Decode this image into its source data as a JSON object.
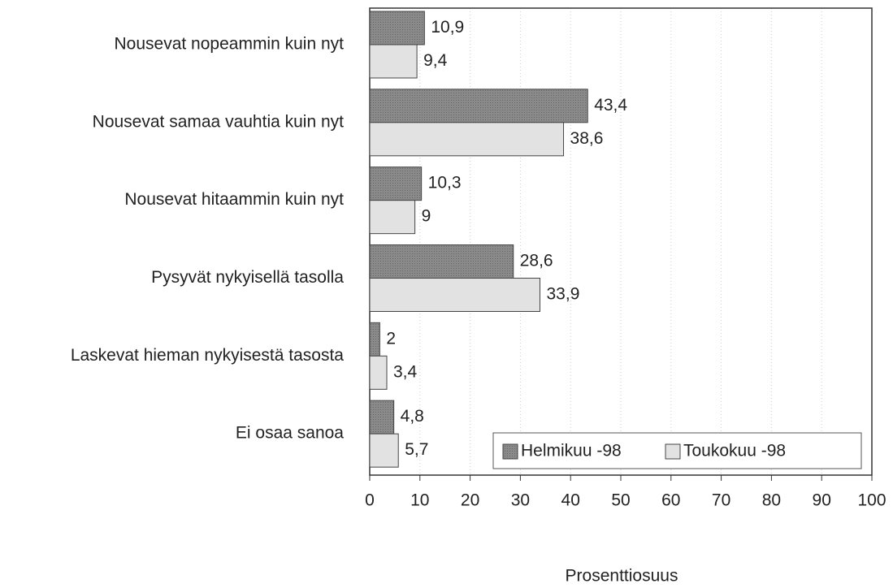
{
  "chart_data": {
    "type": "barh",
    "categories": [
      "Nousevat nopeammin kuin nyt",
      "Nousevat samaa vauhtia kuin nyt",
      "Nousevat hitaammin kuin nyt",
      "Pysyvät nykyisellä tasolla",
      "Laskevat hieman nykyisestä tasosta",
      "Ei osaa sanoa"
    ],
    "series": [
      {
        "name": "Helmikuu -98",
        "color": "#8a8a8a",
        "values": [
          10.9,
          43.4,
          10.3,
          28.6,
          2,
          4.8
        ],
        "value_labels": [
          "10,9",
          "43,4",
          "10,3",
          "28,6",
          "2",
          "4,8"
        ]
      },
      {
        "name": "Toukokuu -98",
        "color": "#e2e2e2",
        "values": [
          9.4,
          38.6,
          9,
          33.9,
          3.4,
          5.7
        ],
        "value_labels": [
          "9,4",
          "38,6",
          "9",
          "33,9",
          "3,4",
          "5,7"
        ]
      }
    ],
    "xlabel": "Prosenttiosuus",
    "xlim": [
      0,
      100
    ],
    "xticks": [
      0,
      10,
      20,
      30,
      40,
      50,
      60,
      70,
      80,
      90,
      100
    ],
    "grid": true,
    "legend": "lower right"
  }
}
